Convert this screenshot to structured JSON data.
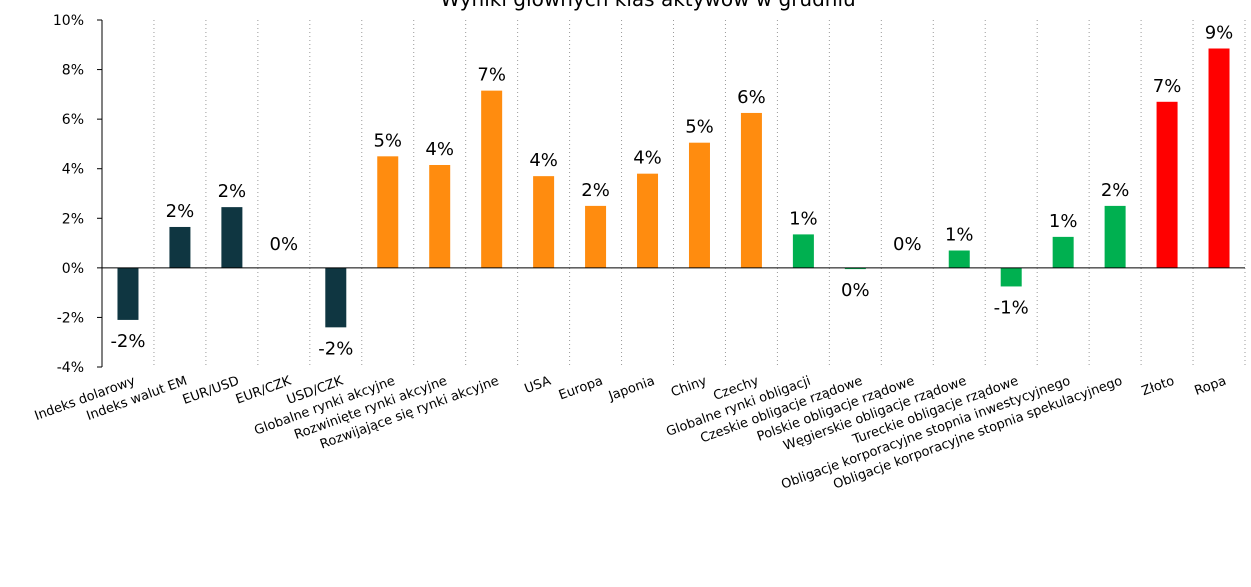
{
  "chart_data": {
    "type": "bar",
    "title": "Wyniki głównych klas aktywów w grudniu",
    "xlabel": "",
    "ylabel": "",
    "ylim": [
      -4,
      10
    ],
    "yticks": [
      -4,
      -2,
      0,
      2,
      4,
      6,
      8,
      10
    ],
    "ytick_labels": [
      "-4%",
      "-2%",
      "0%",
      "2%",
      "4%",
      "6%",
      "8%",
      "10%"
    ],
    "grid": "vertical dotted",
    "legend": "none",
    "categories": [
      "Indeks dolarowy",
      "Indeks walut EM",
      "EUR/USD",
      "EUR/CZK",
      "USD/CZK",
      "Globalne rynki akcyjne",
      "Rozwinięte rynki akcyjne",
      "Rozwijające się rynki akcyjne",
      "USA",
      "Europa",
      "Japonia",
      "Chiny",
      "Czechy",
      "Globalne rynki obligacji",
      "Czeskie obligacje rządowe",
      "Polskie obligacje rządowe",
      "Węgierskie obligacje rządowe",
      "Tureckie obligacje rządowe",
      "Obligacje korporacyjne stopnia inwestycyjnego",
      "Obligacje korporacyjne stopnia spekulacyjnego",
      "Złoto",
      "Ropa"
    ],
    "values": [
      -2.1,
      1.65,
      2.45,
      0.0,
      -2.4,
      4.5,
      4.15,
      7.15,
      3.7,
      2.5,
      3.8,
      5.05,
      6.25,
      1.35,
      -0.05,
      0.0,
      0.7,
      -0.75,
      1.25,
      2.5,
      6.7,
      8.85
    ],
    "data_labels": [
      "-2%",
      "2%",
      "2%",
      "0%",
      "-2%",
      "5%",
      "4%",
      "7%",
      "4%",
      "2%",
      "4%",
      "5%",
      "6%",
      "1%",
      "0%",
      "0%",
      "1%",
      "-1%",
      "1%",
      "2%",
      "7%",
      "9%"
    ],
    "colors": [
      "#0f3641",
      "#0f3641",
      "#0f3641",
      "#0f3641",
      "#0f3641",
      "#ff8c0f",
      "#ff8c0f",
      "#ff8c0f",
      "#ff8c0f",
      "#ff8c0f",
      "#ff8c0f",
      "#ff8c0f",
      "#ff8c0f",
      "#00b050",
      "#00b050",
      "#00b050",
      "#00b050",
      "#00b050",
      "#00b050",
      "#00b050",
      "#ff0000",
      "#ff0000"
    ]
  }
}
